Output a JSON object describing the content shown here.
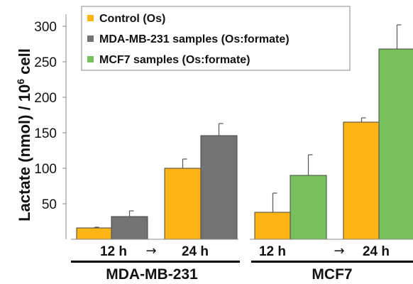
{
  "chart_data": {
    "type": "bar",
    "ylabel_main": "Lactate (nmol) / 10",
    "ylabel_exp": "6",
    "ylabel_tail": " cell",
    "ylim": [
      0,
      310
    ],
    "yticks": [
      50,
      100,
      150,
      200,
      250,
      300
    ],
    "grid": false,
    "legend_position": "top-left",
    "legend": [
      {
        "label": "Control (Os)",
        "color": "#FDB515"
      },
      {
        "label": "MDA-MB-231  samples (Os:formate)",
        "color": "#737373"
      },
      {
        "label": "MCF7 samples (Os:formate)",
        "color": "#77C05B"
      }
    ],
    "groups": [
      {
        "name": "MDA-MB-231",
        "time_points": [
          "12 h",
          "24 h"
        ],
        "arrow": "→",
        "bars": [
          {
            "series": "Control (Os)",
            "time": "12 h",
            "value": 16,
            "error": 1,
            "color": "#FDB515"
          },
          {
            "series": "MDA-MB-231  samples (Os:formate)",
            "time": "12 h",
            "value": 32,
            "error": 8,
            "color": "#737373"
          },
          {
            "series": "Control (Os)",
            "time": "24 h",
            "value": 100,
            "error": 13,
            "color": "#FDB515"
          },
          {
            "series": "MDA-MB-231  samples (Os:formate)",
            "time": "24 h",
            "value": 146,
            "error": 17,
            "color": "#737373"
          }
        ]
      },
      {
        "name": "MCF7",
        "time_points": [
          "12 h",
          "24 h"
        ],
        "arrow": "→",
        "bars": [
          {
            "series": "Control (Os)",
            "time": "12 h",
            "value": 38,
            "error": 27,
            "color": "#FDB515"
          },
          {
            "series": "MCF7 samples (Os:formate)",
            "time": "12 h",
            "value": 90,
            "error": 29,
            "color": "#77C05B"
          },
          {
            "series": "Control (Os)",
            "time": "24 h",
            "value": 165,
            "error": 6,
            "color": "#FDB515"
          },
          {
            "series": "MCF7 samples (Os:formate)",
            "time": "24 h",
            "value": 268,
            "error": 34,
            "color": "#77C05B"
          }
        ]
      }
    ]
  }
}
